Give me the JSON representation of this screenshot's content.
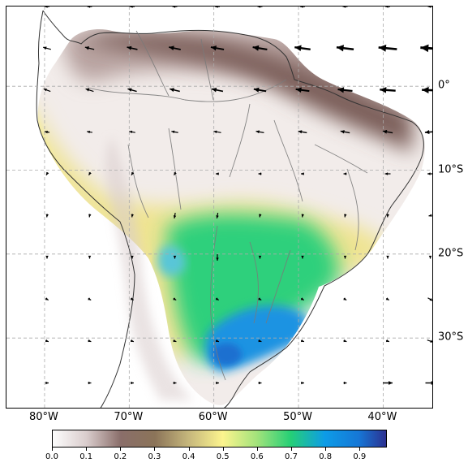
{
  "map": {
    "lon_labels": [
      {
        "text": "80°W",
        "lon": -80
      },
      {
        "text": "70°W",
        "lon": -70
      },
      {
        "text": "60°W",
        "lon": -60
      },
      {
        "text": "50°W",
        "lon": -50
      },
      {
        "text": "40°W",
        "lon": -40
      }
    ],
    "lat_labels": [
      {
        "text": "0°",
        "lat": 0
      },
      {
        "text": "10°S",
        "lat": -10
      },
      {
        "text": "20°S",
        "lat": -20
      },
      {
        "text": "30°S",
        "lat": -30
      }
    ],
    "lon_range": [
      -84.5,
      -34
    ],
    "lat_range": [
      -38.5,
      9.5
    ],
    "gridline_style": "dashed grey",
    "field_colormap": "terrain_r",
    "coastline_color": "#333333",
    "river_color": "#7a7a7a",
    "wind_arrow_color": "#000000"
  },
  "colorbar": {
    "range": [
      0,
      0.98
    ],
    "ticks": [
      "0.0",
      "0.1",
      "0.2",
      "0.3",
      "0.4",
      "0.5",
      "0.6",
      "0.7",
      "0.8",
      "0.9"
    ],
    "stops": [
      {
        "v": 0.0,
        "color": "#fdfdfd"
      },
      {
        "v": 0.1,
        "color": "#d9cccc"
      },
      {
        "v": 0.2,
        "color": "#8a6e6a"
      },
      {
        "v": 0.3,
        "color": "#8b7459"
      },
      {
        "v": 0.4,
        "color": "#c6b77c"
      },
      {
        "v": 0.5,
        "color": "#fcf48e"
      },
      {
        "v": 0.6,
        "color": "#a3e37b"
      },
      {
        "v": 0.7,
        "color": "#25cf76"
      },
      {
        "v": 0.8,
        "color": "#0d9ce7"
      },
      {
        "v": 0.9,
        "color": "#1677d6"
      },
      {
        "v": 0.98,
        "color": "#2c3191"
      }
    ]
  }
}
